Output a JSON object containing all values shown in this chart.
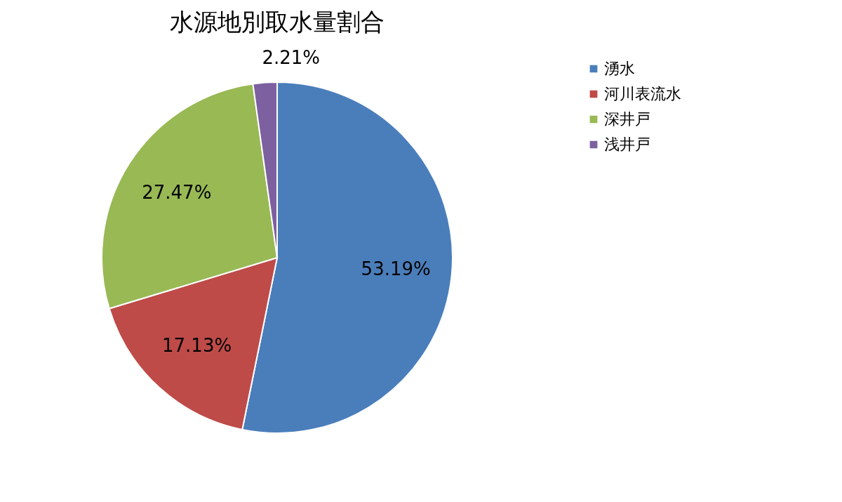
{
  "chart_data": {
    "type": "pie",
    "title": "水源地別取水量割合",
    "categories": [
      "湧水",
      "河川表流水",
      "深井戸",
      "浅井戸"
    ],
    "values": [
      53.19,
      17.13,
      27.47,
      2.21
    ],
    "colors": [
      "#4a7ebb",
      "#be4b48",
      "#98b954",
      "#7d60a0"
    ],
    "value_labels": [
      "53.19%",
      "17.13%",
      "27.47%",
      "2.21%"
    ],
    "legend": "right"
  }
}
